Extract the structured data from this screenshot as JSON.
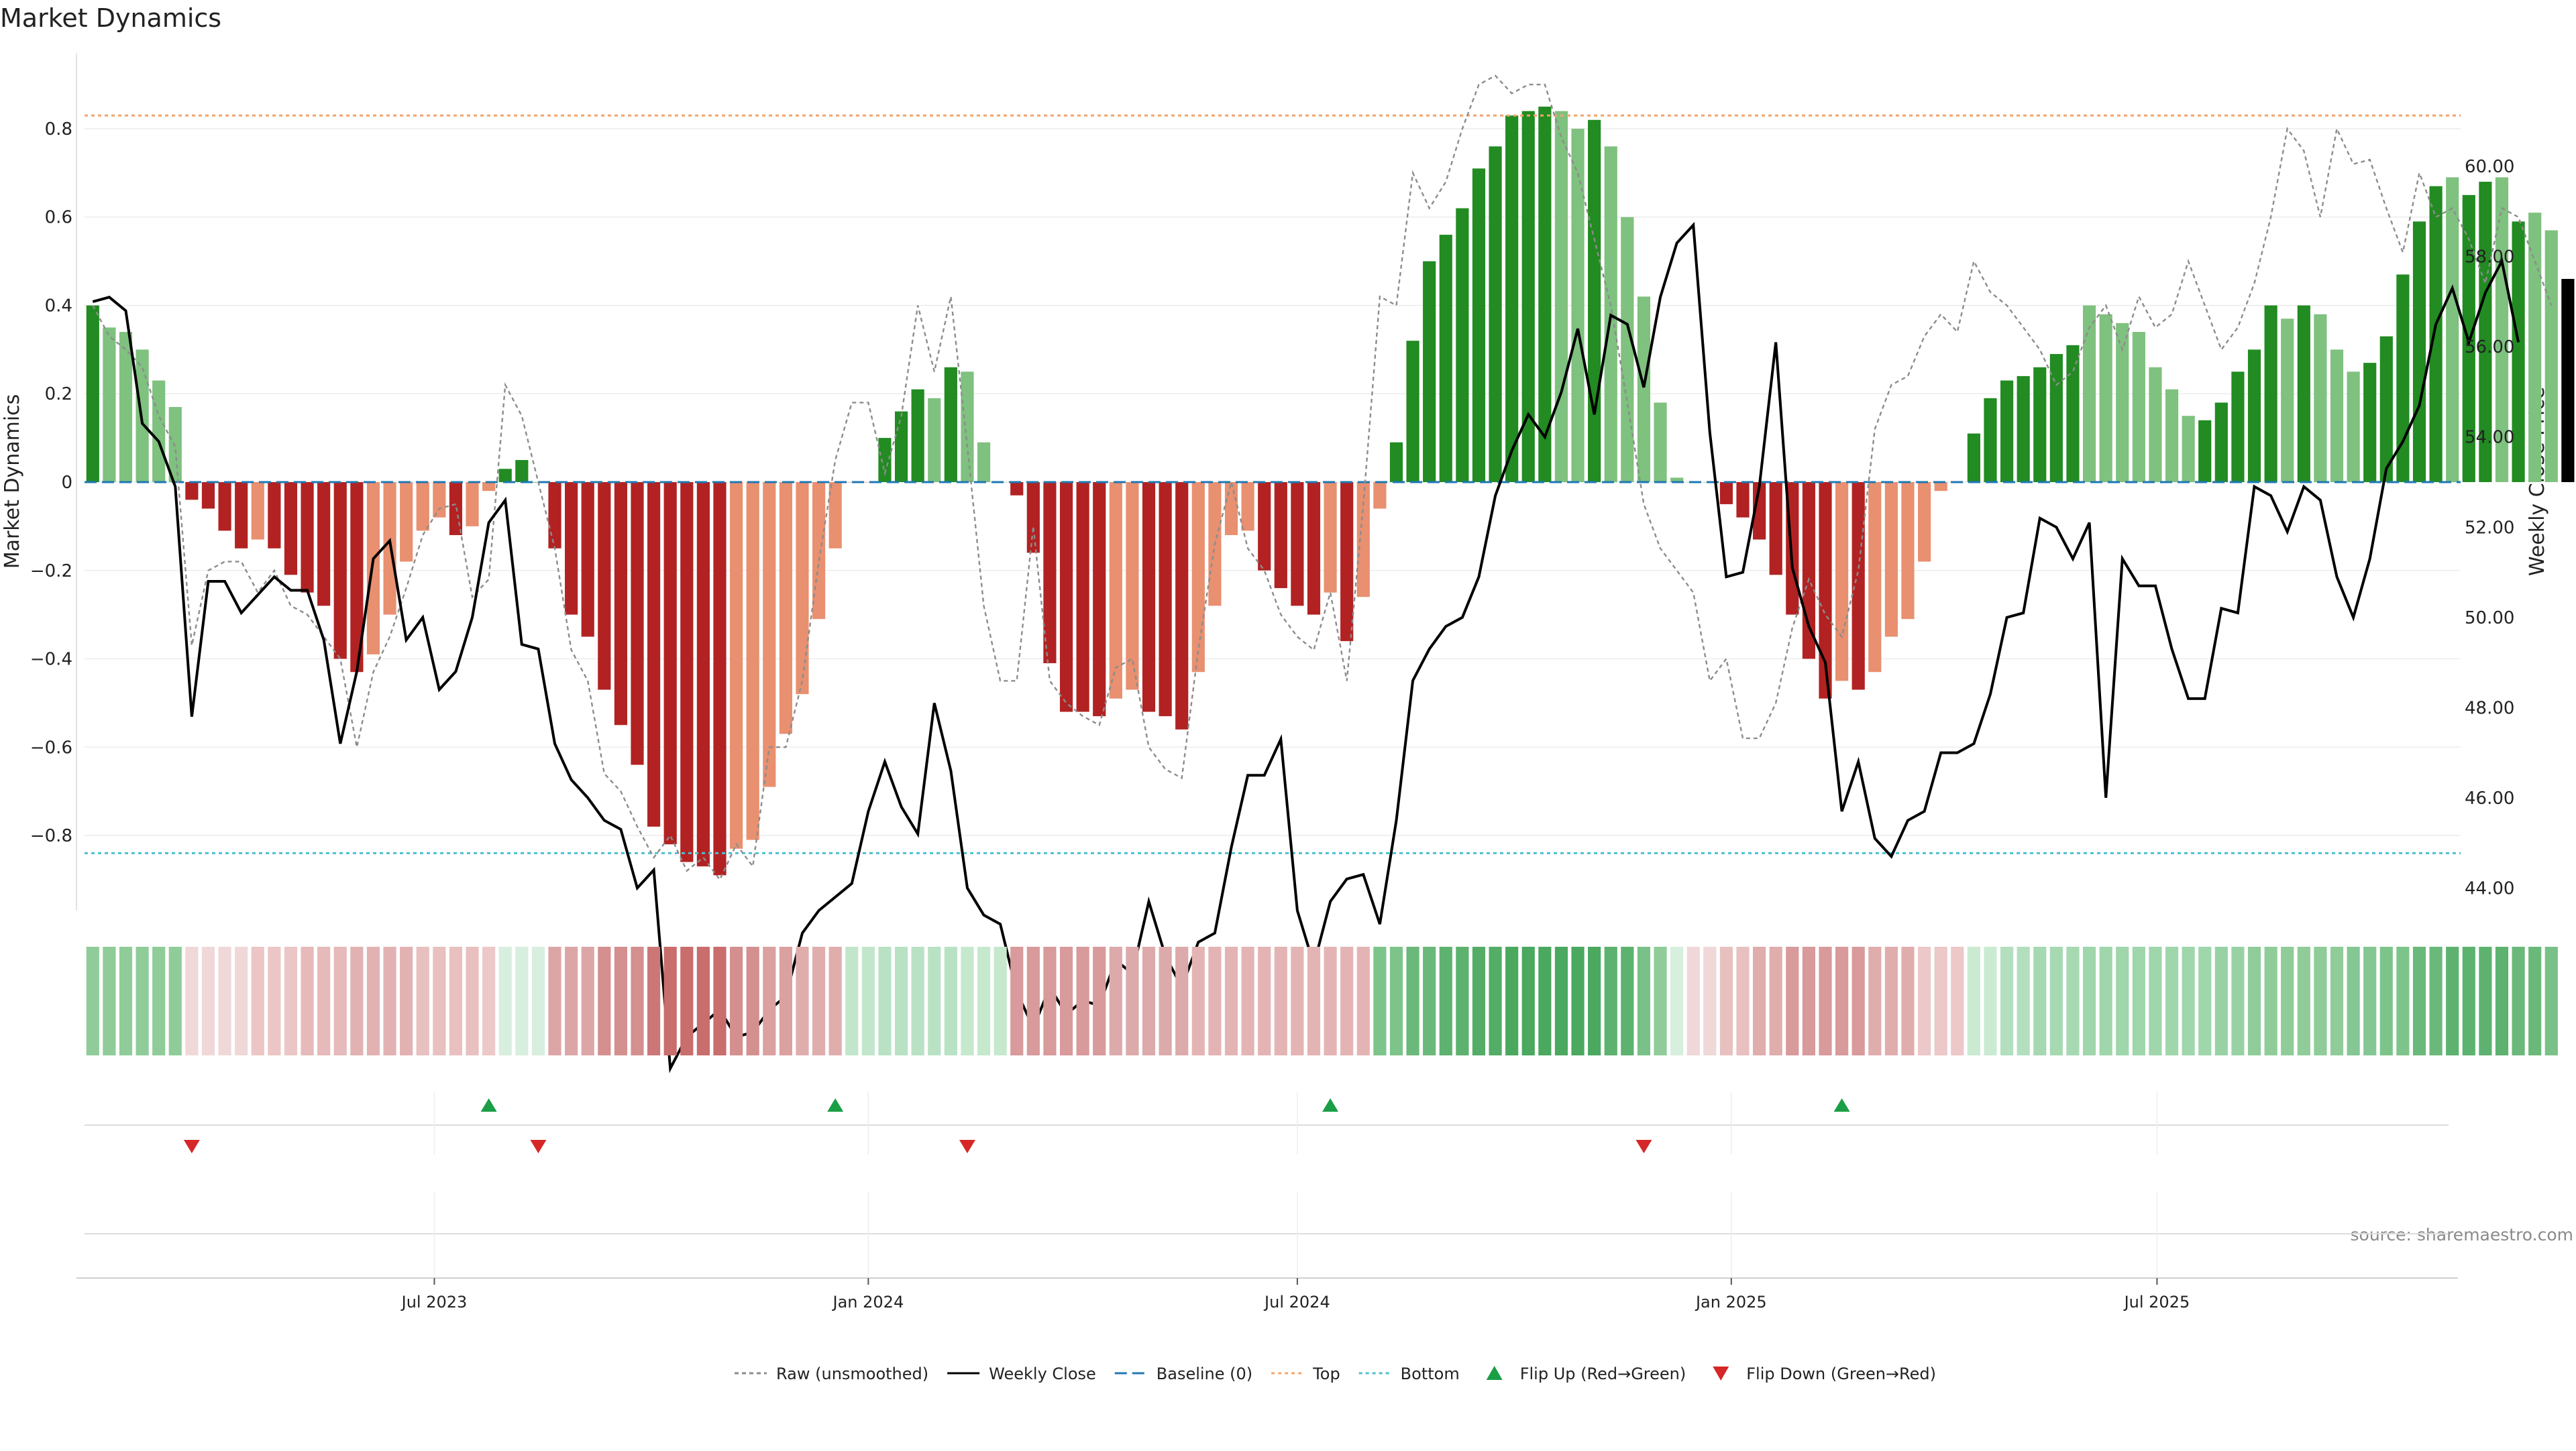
{
  "chart_data": {
    "type": "bar",
    "title": "Market Dynamics",
    "ylabel": "Market Dynamics",
    "y2label": "Weekly Close Price",
    "ylim": [
      -0.97,
      0.97
    ],
    "y2lim": [
      43.5,
      62.5
    ],
    "yticks": [
      {
        "v": 0.8,
        "t": "0.8"
      },
      {
        "v": 0.6,
        "t": "0.6"
      },
      {
        "v": 0.4,
        "t": "0.4"
      },
      {
        "v": 0.2,
        "t": "0.2"
      },
      {
        "v": 0,
        "t": "0"
      },
      {
        "v": -0.2,
        "t": "−0.2"
      },
      {
        "v": -0.4,
        "t": "−0.4"
      },
      {
        "v": -0.6,
        "t": "−0.6"
      },
      {
        "v": -0.8,
        "t": "−0.8"
      }
    ],
    "y2ticks": [
      {
        "v": 60,
        "t": "60.00"
      },
      {
        "v": 58,
        "t": "58.00"
      },
      {
        "v": 56,
        "t": "56.00"
      },
      {
        "v": 54,
        "t": "54.00"
      },
      {
        "v": 52,
        "t": "52.00"
      },
      {
        "v": 50,
        "t": "50.00"
      },
      {
        "v": 48,
        "t": "48.00"
      },
      {
        "v": 46,
        "t": "46.00"
      },
      {
        "v": 44,
        "t": "44.00"
      }
    ],
    "xticks": [
      {
        "i": 21.2,
        "t": "Jul 2023"
      },
      {
        "i": 47.5,
        "t": "Jan 2024"
      },
      {
        "i": 73.5,
        "t": "Jul 2024"
      },
      {
        "i": 99.8,
        "t": "Jan 2025"
      },
      {
        "i": 125.6,
        "t": "Jul 2025"
      }
    ],
    "top_level": 0.83,
    "bottom_level": -0.84,
    "baseline": 0,
    "weeks": 144,
    "bar_values": [
      0.4,
      0.35,
      0.34,
      0.3,
      0.23,
      0.17,
      -0.04,
      -0.06,
      -0.11,
      -0.15,
      -0.13,
      -0.15,
      -0.21,
      -0.25,
      -0.28,
      -0.4,
      -0.43,
      -0.39,
      -0.3,
      -0.18,
      -0.11,
      -0.08,
      -0.12,
      -0.1,
      -0.02,
      0.03,
      0.05,
      0.0,
      -0.15,
      -0.3,
      -0.35,
      -0.47,
      -0.55,
      -0.64,
      -0.78,
      -0.82,
      -0.86,
      -0.87,
      -0.89,
      -0.83,
      -0.81,
      -0.69,
      -0.57,
      -0.48,
      -0.31,
      -0.15,
      0.0,
      0.0,
      0.1,
      0.16,
      0.21,
      0.19,
      0.26,
      0.25,
      0.09,
      0.0,
      -0.03,
      -0.16,
      -0.41,
      -0.52,
      -0.52,
      -0.53,
      -0.49,
      -0.47,
      -0.52,
      -0.53,
      -0.56,
      -0.43,
      -0.28,
      -0.12,
      -0.11,
      -0.2,
      -0.24,
      -0.28,
      -0.3,
      -0.25,
      -0.36,
      -0.26,
      -0.06,
      0.09,
      0.32,
      0.5,
      0.56,
      0.62,
      0.71,
      0.76,
      0.83,
      0.84,
      0.85,
      0.84,
      0.8,
      0.82,
      0.76,
      0.6,
      0.42,
      0.18,
      0.01,
      0.0,
      0.0,
      -0.05,
      -0.08,
      -0.13,
      -0.21,
      -0.3,
      -0.4,
      -0.49,
      -0.45,
      -0.47,
      -0.43,
      -0.35,
      -0.31,
      -0.18,
      -0.02,
      0.0,
      0.11,
      0.19,
      0.23,
      0.24,
      0.26,
      0.29,
      0.31,
      0.4,
      0.38,
      0.36,
      0.34,
      0.26,
      0.21,
      0.15,
      0.14,
      0.18,
      0.25,
      0.3,
      0.4,
      0.37,
      0.4,
      0.38,
      0.3,
      0.25,
      0.27,
      0.33,
      0.47,
      0.59,
      0.67,
      0.69,
      0.65,
      0.68,
      0.69,
      0.59,
      0.61,
      0.57,
      0.46
    ],
    "bar_colors": [
      "#228b22",
      "#7fc17f",
      "#7fc17f",
      "#7fc17f",
      "#7fc17f",
      "#7fc17f",
      "#b22222",
      "#b22222",
      "#b22222",
      "#b22222",
      "#e89070",
      "#b22222",
      "#b22222",
      "#b22222",
      "#b22222",
      "#b22222",
      "#b22222",
      "#e89070",
      "#e89070",
      "#e89070",
      "#e89070",
      "#e89070",
      "#b22222",
      "#e89070",
      "#e89070",
      "#228b22",
      "#228b22",
      "#228b22",
      "#b22222",
      "#b22222",
      "#b22222",
      "#b22222",
      "#b22222",
      "#b22222",
      "#b22222",
      "#b22222",
      "#b22222",
      "#b22222",
      "#b22222",
      "#e89070",
      "#e89070",
      "#e89070",
      "#e89070",
      "#e89070",
      "#e89070",
      "#e89070",
      "#e89070",
      "#e89070",
      "#228b22",
      "#228b22",
      "#228b22",
      "#7fc17f",
      "#228b22",
      "#7fc17f",
      "#7fc17f",
      "#7fc17f",
      "#b22222",
      "#b22222",
      "#b22222",
      "#b22222",
      "#b22222",
      "#b22222",
      "#e89070",
      "#e89070",
      "#b22222",
      "#b22222",
      "#b22222",
      "#e89070",
      "#e89070",
      "#e89070",
      "#e89070",
      "#b22222",
      "#b22222",
      "#b22222",
      "#b22222",
      "#e89070",
      "#b22222",
      "#e89070",
      "#e89070",
      "#228b22",
      "#228b22",
      "#228b22",
      "#228b22",
      "#228b22",
      "#228b22",
      "#228b22",
      "#228b22",
      "#228b22",
      "#228b22",
      "#7fc17f",
      "#7fc17f",
      "#228b22",
      "#7fc17f",
      "#7fc17f",
      "#7fc17f",
      "#7fc17f",
      "#7fc17f",
      "#7fc17f",
      "#7fc17f",
      "#b22222",
      "#b22222",
      "#b22222",
      "#b22222",
      "#b22222",
      "#b22222",
      "#b22222",
      "#e89070",
      "#b22222",
      "#e89070",
      "#e89070",
      "#e89070",
      "#e89070",
      "#e89070",
      "#e89070",
      "#228b22",
      "#228b22",
      "#228b22",
      "#228b22",
      "#228b22",
      "#228b22",
      "#228b22",
      "#7fc17f",
      "#7fc17f",
      "#7fc17f",
      "#7fc17f",
      "#7fc17f",
      "#7fc17f",
      "#7fc17f",
      "#228b22",
      "#228b22",
      "#228b22",
      "#228b22",
      "#228b22",
      "#7fc17f",
      "#228b22",
      "#7fc17f",
      "#7fc17f",
      "#7fc17f",
      "#228b22",
      "#228b22",
      "#228b22",
      "#228b22",
      "#228b22",
      "#7fc17f",
      "#228b22",
      "#228b22",
      "#7fc17f",
      "#228b22",
      "#7fc17f",
      "#7fc17f"
    ],
    "raw_values": [
      0.4,
      0.33,
      0.3,
      0.26,
      0.15,
      0.08,
      -0.37,
      -0.2,
      -0.18,
      -0.18,
      -0.25,
      -0.2,
      -0.28,
      -0.3,
      -0.35,
      -0.4,
      -0.6,
      -0.43,
      -0.35,
      -0.24,
      -0.12,
      -0.06,
      -0.05,
      -0.26,
      -0.22,
      0.22,
      0.15,
      0.0,
      -0.15,
      -0.38,
      -0.45,
      -0.66,
      -0.7,
      -0.78,
      -0.85,
      -0.8,
      -0.88,
      -0.85,
      -0.9,
      -0.82,
      -0.87,
      -0.6,
      -0.6,
      -0.45,
      -0.18,
      0.05,
      0.18,
      0.18,
      0.02,
      0.15,
      0.4,
      0.25,
      0.42,
      0.08,
      -0.28,
      -0.45,
      -0.45,
      -0.1,
      -0.45,
      -0.5,
      -0.53,
      -0.55,
      -0.42,
      -0.4,
      -0.6,
      -0.65,
      -0.67,
      -0.38,
      -0.14,
      0.0,
      -0.15,
      -0.2,
      -0.3,
      -0.35,
      -0.38,
      -0.25,
      -0.45,
      -0.05,
      0.42,
      0.4,
      0.7,
      0.62,
      0.68,
      0.8,
      0.9,
      0.92,
      0.88,
      0.9,
      0.9,
      0.78,
      0.7,
      0.55,
      0.4,
      0.18,
      -0.05,
      -0.15,
      -0.2,
      -0.25,
      -0.45,
      -0.4,
      -0.58,
      -0.58,
      -0.5,
      -0.33,
      -0.22,
      -0.3,
      -0.35,
      -0.2,
      0.12,
      0.22,
      0.24,
      0.33,
      0.38,
      0.34,
      0.5,
      0.43,
      0.4,
      0.35,
      0.3,
      0.22,
      0.25,
      0.35,
      0.4,
      0.3,
      0.42,
      0.35,
      0.38,
      0.5,
      0.4,
      0.3,
      0.35,
      0.45,
      0.6,
      0.8,
      0.75,
      0.6,
      0.8,
      0.72,
      0.73,
      0.62,
      0.52,
      0.7,
      0.6,
      0.62,
      0.55,
      0.45,
      0.62,
      0.6,
      0.5,
      0.4
    ],
    "weekly_close": [
      57.0,
      57.1,
      56.8,
      54.3,
      53.9,
      52.9,
      47.8,
      50.8,
      50.8,
      50.1,
      50.5,
      50.9,
      50.6,
      50.6,
      49.5,
      47.2,
      48.8,
      51.3,
      51.7,
      49.5,
      50.0,
      48.4,
      48.8,
      50.0,
      52.1,
      52.6,
      49.4,
      49.3,
      47.2,
      46.4,
      46.0,
      45.5,
      45.3,
      44.0,
      44.4,
      40.0,
      40.7,
      41.0,
      41.3,
      40.7,
      40.8,
      41.3,
      41.6,
      43.0,
      43.5,
      43.8,
      44.1,
      45.7,
      46.8,
      45.8,
      45.2,
      48.1,
      46.6,
      44.0,
      43.4,
      43.2,
      41.7,
      40.9,
      41.8,
      41.2,
      41.5,
      41.4,
      42.4,
      42.1,
      43.7,
      42.5,
      41.8,
      42.8,
      43.0,
      44.9,
      46.5,
      46.5,
      47.3,
      43.5,
      42.3,
      43.7,
      44.2,
      44.3,
      43.2,
      45.5,
      48.6,
      49.3,
      49.8,
      50.0,
      50.9,
      52.7,
      53.7,
      54.5,
      54.0,
      55.0,
      56.4,
      54.5,
      56.7,
      56.5,
      55.1,
      57.1,
      58.3,
      58.7,
      54.1,
      50.9,
      51.0,
      52.9,
      56.1,
      51.1,
      49.8,
      49.0,
      45.7,
      46.8,
      45.1,
      44.7,
      45.5,
      45.7,
      47.0,
      47.0,
      47.2,
      48.3,
      50.0,
      50.1,
      52.2,
      52.0,
      51.3,
      52.1,
      46.0,
      51.3,
      50.7,
      50.7,
      49.3,
      48.2,
      48.2,
      50.2,
      50.1,
      52.9,
      52.7,
      51.9,
      52.9,
      52.6,
      50.9,
      50.0,
      51.3,
      53.3,
      53.9,
      54.7,
      56.5,
      57.3,
      56.1,
      57.2,
      57.9,
      56.1
    ],
    "heat_colors": [
      "#8fcc99",
      "#8fcc99",
      "#8fcc99",
      "#8fcc99",
      "#8fcc99",
      "#8fcc99",
      "#f0d8d8",
      "#f0d8d8",
      "#f0d8d8",
      "#f0d8d8",
      "#ecc6c6",
      "#ecc6c6",
      "#ecc6c6",
      "#e6baba",
      "#e6baba",
      "#e6baba",
      "#e2b2b2",
      "#e2b2b2",
      "#e2b2b2",
      "#e2b2b2",
      "#e8c0c0",
      "#e8c0c0",
      "#e8c0c0",
      "#e8c0c0",
      "#ecc8c8",
      "#d8eede",
      "#d8eede",
      "#d8eede",
      "#dca6a6",
      "#dca6a6",
      "#dca6a6",
      "#d48f8f",
      "#d48f8f",
      "#d48f8f",
      "#cc7777",
      "#c96d6d",
      "#c96d6d",
      "#c96d6d",
      "#c96d6d",
      "#d48f8f",
      "#d48f8f",
      "#dba0a0",
      "#dba0a0",
      "#e0adad",
      "#e0adad",
      "#e0adad",
      "#c2e6cb",
      "#c2e6cb",
      "#b9e2c4",
      "#b9e2c4",
      "#b9e2c4",
      "#b9e2c4",
      "#b9e2c4",
      "#c6e8cd",
      "#c6e8cd",
      "#c6e8cd",
      "#d89a9a",
      "#d89a9a",
      "#d89a9a",
      "#d89a9a",
      "#d89a9a",
      "#d89a9a",
      "#dcaaaa",
      "#dcaaaa",
      "#dcaaaa",
      "#dcaaaa",
      "#dcaaaa",
      "#e4b4b4",
      "#e4b4b4",
      "#e4b4b4",
      "#e4b4b4",
      "#e4b4b4",
      "#e4b4b4",
      "#e4b4b4",
      "#e4b4b4",
      "#e4b4b4",
      "#e4b4b4",
      "#e4b4b4",
      "#7dc48b",
      "#7dc48b",
      "#6ab97a",
      "#6ab97a",
      "#5db26f",
      "#5db26f",
      "#53ad66",
      "#53ad66",
      "#4aa85f",
      "#4aa85f",
      "#4aa85f",
      "#4aa85f",
      "#4aa85f",
      "#4aa85f",
      "#5db26f",
      "#5db26f",
      "#79c188",
      "#8fcc99",
      "#d8eede",
      "#f0d8d8",
      "#f0d8d8",
      "#e8c0c0",
      "#e8c0c0",
      "#e0adad",
      "#e0adad",
      "#d89a9a",
      "#d89a9a",
      "#d89a9a",
      "#d89a9a",
      "#d89a9a",
      "#e0adad",
      "#e0adad",
      "#e0adad",
      "#ecc8c8",
      "#ecc8c8",
      "#ecc8c8",
      "#cbead2",
      "#cbead2",
      "#b3dfbe",
      "#b3dfbe",
      "#a6d9b1",
      "#a6d9b1",
      "#a6d9b1",
      "#9fd6ab",
      "#9fd6ab",
      "#9fd6ab",
      "#9fd6ab",
      "#9fd6ab",
      "#9fd6ab",
      "#9fd6ab",
      "#9fd6ab",
      "#98d2a4",
      "#98d2a4",
      "#8fcc99",
      "#8fcc99",
      "#8fcc99",
      "#8fcc99",
      "#8fcc99",
      "#8fcc99",
      "#84c793",
      "#84c793",
      "#7dc48b",
      "#7dc48b",
      "#6ab97a",
      "#6ab97a",
      "#5db26f",
      "#5db26f",
      "#5db26f",
      "#5db26f",
      "#6ab97a",
      "#6ab97a",
      "#79c188"
    ],
    "flip_up_weeks": [
      24,
      45,
      75,
      106
    ],
    "flip_down_weeks": [
      6,
      27,
      53,
      94
    ],
    "source_note": "source: sharemaestro.com",
    "legend": [
      {
        "label": "Raw (unsmoothed)",
        "kind": "line",
        "color": "#8c8c8c",
        "dash": "6,5"
      },
      {
        "label": "Weekly Close",
        "kind": "line",
        "color": "#000000",
        "dash": ""
      },
      {
        "label": "Baseline (0)",
        "kind": "line",
        "color": "#1f77b4",
        "dash": "18,8"
      },
      {
        "label": "Top",
        "kind": "line",
        "color": "#f4a46a",
        "dash": "5,5"
      },
      {
        "label": "Bottom",
        "kind": "line",
        "color": "#4bc0d0",
        "dash": "5,5"
      },
      {
        "label": "Flip Up (Red→Green)",
        "kind": "tri-up",
        "color": "#1a9e46",
        "dash": ""
      },
      {
        "label": "Flip Down (Green→Red)",
        "kind": "tri-down",
        "color": "#d62728",
        "dash": ""
      }
    ],
    "colors": {
      "strong_green": "#228b22",
      "light_green": "#7fc17f",
      "strong_red": "#b22222",
      "light_red": "#e89070",
      "raw": "#8c8c8c",
      "close": "#000000",
      "baseline": "#1f77b4",
      "top": "#f4a46a",
      "bottom": "#4bc0d0",
      "flip_up": "#1a9e46",
      "flip_down": "#d62728"
    }
  }
}
